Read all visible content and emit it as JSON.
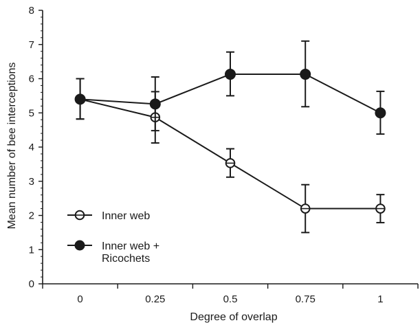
{
  "chart_data": {
    "type": "line",
    "title": "",
    "xlabel": "Degree of overlap",
    "ylabel": "Mean number of bee interceptions",
    "x": [
      0,
      0.25,
      0.5,
      0.75,
      1
    ],
    "x_tick_labels": [
      "0",
      "0.25",
      "0.5",
      "0.75",
      "1"
    ],
    "ylim": [
      0,
      8
    ],
    "y_tick_labels": [
      "0",
      "1",
      "2",
      "3",
      "4",
      "5",
      "6",
      "7",
      "8"
    ],
    "xlim": [
      -0.125,
      1.125
    ],
    "grid": false,
    "legend_placement": "bottom-left",
    "series": [
      {
        "name": "Inner web",
        "marker": "open-circle",
        "values": [
          5.4,
          4.87,
          3.53,
          2.2,
          2.2
        ],
        "error_low": [
          4.82,
          4.12,
          3.12,
          1.5,
          1.79
        ],
        "error_high": [
          6.0,
          5.62,
          3.95,
          2.9,
          2.61
        ]
      },
      {
        "name": "Inner web + Ricochets",
        "marker": "filled-circle",
        "values": [
          5.4,
          5.26,
          6.13,
          6.13,
          5.0
        ],
        "error_low": [
          4.82,
          4.48,
          5.5,
          5.18,
          4.38
        ],
        "error_high": [
          6.0,
          6.05,
          6.78,
          7.1,
          5.63
        ]
      }
    ],
    "legend": [
      {
        "label_lines": [
          "Inner web"
        ],
        "marker": "open-circle"
      },
      {
        "label_lines": [
          "Inner web +",
          "Ricochets"
        ],
        "marker": "filled-circle"
      }
    ],
    "colors": {
      "ink": "#1a1a1a",
      "background": "#ffffff"
    }
  }
}
